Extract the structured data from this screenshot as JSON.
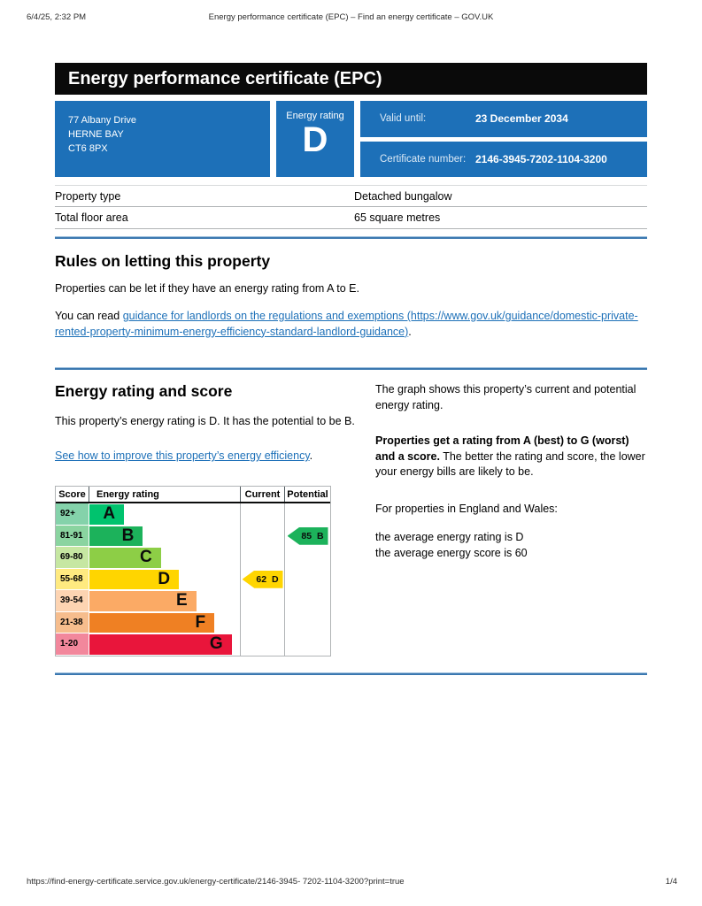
{
  "print_header": {
    "datetime": "6/4/25, 2:32 PM",
    "document_title": "Energy performance certificate (EPC) – Find an energy certificate – GOV.UK"
  },
  "banner": {
    "title": "Energy performance certificate (EPC)"
  },
  "summary": {
    "address_lines": [
      "77 Albany Drive",
      "HERNE BAY",
      "CT6 8PX"
    ],
    "energy_rating_label": "Energy rating",
    "energy_rating": "D",
    "valid_until_label": "Valid until:",
    "valid_until": "23 December 2034",
    "certificate_number_label": "Certificate number:",
    "certificate_number": "2146-3945-7202-1104-3200"
  },
  "property_table": {
    "rows": [
      {
        "label": "Property type",
        "value": "Detached bungalow"
      },
      {
        "label": "Total floor area",
        "value": "65 square metres"
      }
    ]
  },
  "rules_section": {
    "heading": "Rules on letting this property",
    "p1": "Properties can be let if they have an energy rating from A to E.",
    "p2_prefix": "You can read ",
    "p2_link": "guidance for landlords on the regulations and exemptions (https://www.gov.uk/guidance/domestic-private-rented-property-minimum-energy-efficiency-standard-landlord-guidance)",
    "p2_suffix": "."
  },
  "rating_section": {
    "heading": "Energy rating and score",
    "p1": "This property’s energy rating is D. It has the potential to be B.",
    "improve_link": "See how to improve this property’s energy efficiency",
    "improve_suffix": ".",
    "right_p1": "The graph shows this property’s current and potential energy rating.",
    "right_p2_bold": "Properties get a rating from A (best) to G (worst) and a score.",
    "right_p2_rest": " The better the rating and score, the lower your energy bills are likely to be.",
    "right_p3": "For properties in England and Wales:",
    "right_p4_line1": "the average energy rating is D",
    "right_p4_line2": "the average energy score is 60"
  },
  "chart_data": {
    "type": "epc-rating-bands",
    "title": "Energy rating and score chart",
    "headers": [
      "Score",
      "Energy rating",
      "Current",
      "Potential"
    ],
    "bands": [
      {
        "letter": "A",
        "score": "92+",
        "color": "#00c36e",
        "tint": "#84d2aa",
        "width_pct": 23
      },
      {
        "letter": "B",
        "score": "81-91",
        "color": "#1cb25b",
        "tint": "#8ad4a0",
        "width_pct": 35.5
      },
      {
        "letter": "C",
        "score": "69-80",
        "color": "#8dce46",
        "tint": "#c6e7a2",
        "width_pct": 47.5
      },
      {
        "letter": "D",
        "score": "55-68",
        "color": "#ffd500",
        "tint": "#ffea80",
        "width_pct": 59.5
      },
      {
        "letter": "E",
        "score": "39-54",
        "color": "#fbaa65",
        "tint": "#fdd4b2",
        "width_pct": 71
      },
      {
        "letter": "F",
        "score": "21-38",
        "color": "#ef8023",
        "tint": "#f6bd8d",
        "width_pct": 83
      },
      {
        "letter": "G",
        "score": "1-20",
        "color": "#e9153b",
        "tint": "#f2879c",
        "width_pct": 94.5
      }
    ],
    "current": {
      "score": 62,
      "band": "D",
      "color": "#ffd500"
    },
    "potential": {
      "score": 85,
      "band": "B",
      "color": "#1cb25b"
    }
  },
  "print_footer": {
    "url": "https://find-energy-certificate.service.gov.uk/energy-certificate/2146-3945- 7202-1104-3200?print=true",
    "page_indicator": "1/4"
  },
  "colors": {
    "brand_blue": "#1d70b8",
    "banner_black": "#0a0a0a",
    "rule_blue": "#3b78b0",
    "border_gray": "#b1b4b6"
  }
}
